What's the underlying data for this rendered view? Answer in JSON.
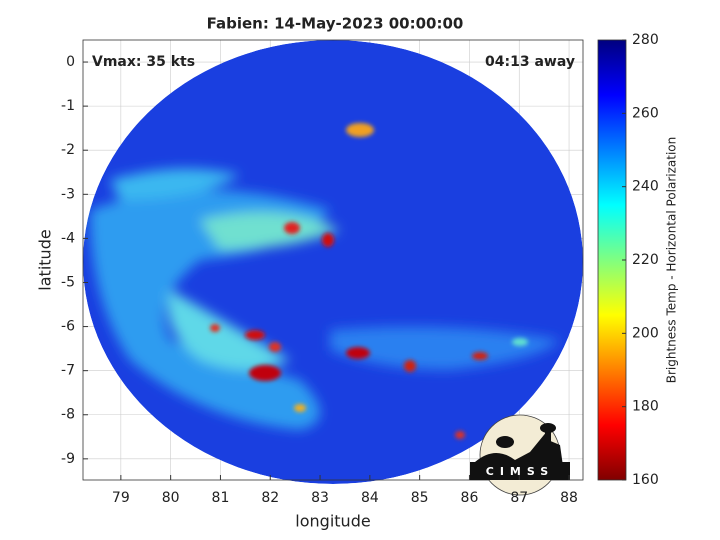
{
  "chart_data": {
    "type": "image",
    "title": "Fabien: 14-May-2023 00:00:00",
    "annotations": [
      "Vmax: 35 kts",
      "04:13 away"
    ],
    "xlabel": "longitude",
    "ylabel": "latitude",
    "xlim": [
      78.24,
      88.28
    ],
    "xticks": [
      79,
      80,
      81,
      82,
      83,
      84,
      85,
      86,
      87,
      88
    ],
    "ylim": [
      -9.48,
      0.5
    ],
    "yticks": [
      0,
      -1,
      -2,
      -3,
      -4,
      -5,
      -6,
      -7,
      -8,
      -9
    ],
    "grid": true,
    "colorbar": {
      "label": "Brightness Temp - Horizontal Polarization",
      "lim": [
        160,
        280
      ],
      "ticks": [
        160,
        180,
        200,
        220,
        240,
        260,
        280
      ],
      "colormap": "jet"
    },
    "logo": "CIMSS"
  }
}
